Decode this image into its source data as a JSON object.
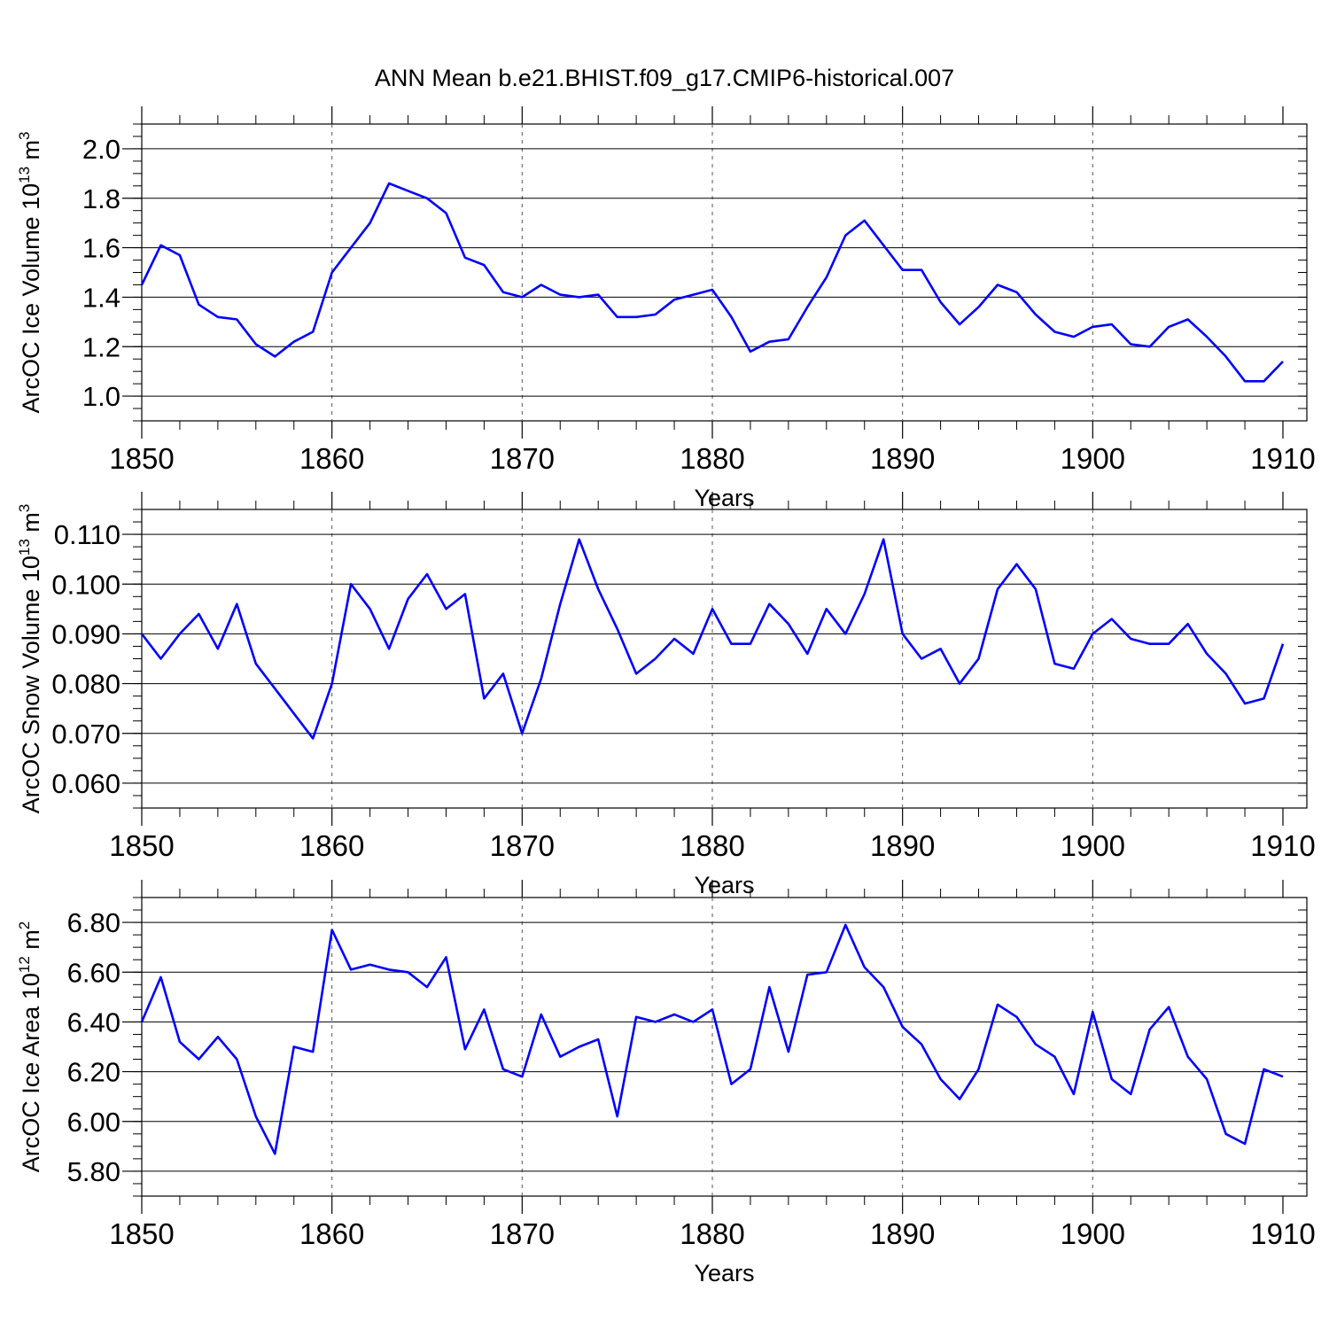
{
  "figure_title": "ANN Mean b.e21.BHIST.f09_g17.CMIP6-historical.007",
  "colors": {
    "line": "#0000ff",
    "axis": "#000000",
    "grid": "#555555"
  },
  "chart_data": [
    {
      "type": "line",
      "ylabel": "ArcOC Ice Volume 10",
      "ylabel_exp": "13",
      "ylabel_unit": " m",
      "ylabel_unit_exp": "3",
      "xlabel": "Years",
      "xlim": [
        1850,
        1910
      ],
      "ylim": [
        0.9,
        2.1
      ],
      "y_plot_range": [
        0.9,
        2.0
      ],
      "xticks": [
        1850,
        1860,
        1870,
        1880,
        1890,
        1900,
        1910
      ],
      "xtick_labels": [
        "1850",
        "1860",
        "1870",
        "1880",
        "1890",
        "1900",
        "1910"
      ],
      "yticks": [
        1.0,
        1.2,
        1.4,
        1.6,
        1.8,
        2.0
      ],
      "ytick_labels": [
        "1.0",
        "1.2",
        "1.4",
        "1.6",
        "1.8",
        "2.0"
      ],
      "grid": "vertical dashed at decades",
      "series": [
        {
          "name": "ArcOC Ice Volume",
          "x_start": 1850,
          "values": [
            1.45,
            1.61,
            1.57,
            1.37,
            1.32,
            1.31,
            1.21,
            1.16,
            1.22,
            1.26,
            1.5,
            1.6,
            1.7,
            1.86,
            1.83,
            1.8,
            1.74,
            1.56,
            1.53,
            1.42,
            1.4,
            1.45,
            1.41,
            1.4,
            1.41,
            1.32,
            1.32,
            1.33,
            1.39,
            1.41,
            1.43,
            1.32,
            1.18,
            1.22,
            1.23,
            1.36,
            1.48,
            1.65,
            1.71,
            1.61,
            1.51,
            1.51,
            1.38,
            1.29,
            1.36,
            1.45,
            1.42,
            1.33,
            1.26,
            1.24,
            1.28,
            1.29,
            1.21,
            1.2,
            1.28,
            1.31,
            1.24,
            1.16,
            1.06,
            1.06,
            1.14
          ]
        }
      ]
    },
    {
      "type": "line",
      "ylabel": "ArcOC Snow Volume 10",
      "ylabel_exp": "13",
      "ylabel_unit": " m",
      "ylabel_unit_exp": "3",
      "xlabel": "Years",
      "xlim": [
        1850,
        1910
      ],
      "ylim": [
        0.055,
        0.115
      ],
      "y_plot_range": [
        0.06,
        0.11
      ],
      "xticks": [
        1850,
        1860,
        1870,
        1880,
        1890,
        1900,
        1910
      ],
      "xtick_labels": [
        "1850",
        "1860",
        "1870",
        "1880",
        "1890",
        "1900",
        "1910"
      ],
      "yticks": [
        0.06,
        0.07,
        0.08,
        0.09,
        0.1,
        0.11
      ],
      "ytick_labels": [
        "0.060",
        "0.070",
        "0.080",
        "0.090",
        "0.100",
        "0.110"
      ],
      "grid": "vertical dashed at decades",
      "series": [
        {
          "name": "ArcOC Snow Volume",
          "x_start": 1850,
          "values": [
            0.09,
            0.085,
            0.09,
            0.094,
            0.087,
            0.096,
            0.084,
            0.079,
            0.074,
            0.069,
            0.08,
            0.1,
            0.095,
            0.087,
            0.097,
            0.102,
            0.095,
            0.098,
            0.077,
            0.082,
            0.07,
            0.081,
            0.096,
            0.109,
            0.099,
            0.091,
            0.082,
            0.085,
            0.089,
            0.086,
            0.095,
            0.088,
            0.088,
            0.096,
            0.092,
            0.086,
            0.095,
            0.09,
            0.098,
            0.109,
            0.09,
            0.085,
            0.087,
            0.08,
            0.085,
            0.099,
            0.104,
            0.099,
            0.084,
            0.083,
            0.09,
            0.093,
            0.089,
            0.088,
            0.088,
            0.092,
            0.086,
            0.082,
            0.076,
            0.077,
            0.088
          ]
        }
      ]
    },
    {
      "type": "line",
      "ylabel": "ArcOC Ice Area 10",
      "ylabel_exp": "12",
      "ylabel_unit": " m",
      "ylabel_unit_exp": "2",
      "xlabel": "Years",
      "xlim": [
        1850,
        1910
      ],
      "ylim": [
        5.7,
        6.9
      ],
      "y_plot_range": [
        5.8,
        6.8
      ],
      "xticks": [
        1850,
        1860,
        1870,
        1880,
        1890,
        1900,
        1910
      ],
      "xtick_labels": [
        "1850",
        "1860",
        "1870",
        "1880",
        "1890",
        "1900",
        "1910"
      ],
      "yticks": [
        5.8,
        6.0,
        6.2,
        6.4,
        6.6,
        6.8
      ],
      "ytick_labels": [
        "5.80",
        "6.00",
        "6.20",
        "6.40",
        "6.60",
        "6.80"
      ],
      "grid": "vertical dashed at decades",
      "series": [
        {
          "name": "ArcOC Ice Area",
          "x_start": 1850,
          "values": [
            6.4,
            6.58,
            6.32,
            6.25,
            6.34,
            6.25,
            6.02,
            5.87,
            6.3,
            6.28,
            6.77,
            6.61,
            6.63,
            6.61,
            6.6,
            6.54,
            6.66,
            6.29,
            6.45,
            6.21,
            6.18,
            6.43,
            6.26,
            6.3,
            6.33,
            6.02,
            6.42,
            6.4,
            6.43,
            6.4,
            6.45,
            6.15,
            6.21,
            6.54,
            6.28,
            6.59,
            6.6,
            6.79,
            6.62,
            6.54,
            6.38,
            6.31,
            6.17,
            6.09,
            6.21,
            6.47,
            6.42,
            6.31,
            6.26,
            6.11,
            6.44,
            6.17,
            6.11,
            6.37,
            6.46,
            6.26,
            6.17,
            5.95,
            5.91,
            6.21,
            6.18
          ]
        }
      ]
    }
  ]
}
